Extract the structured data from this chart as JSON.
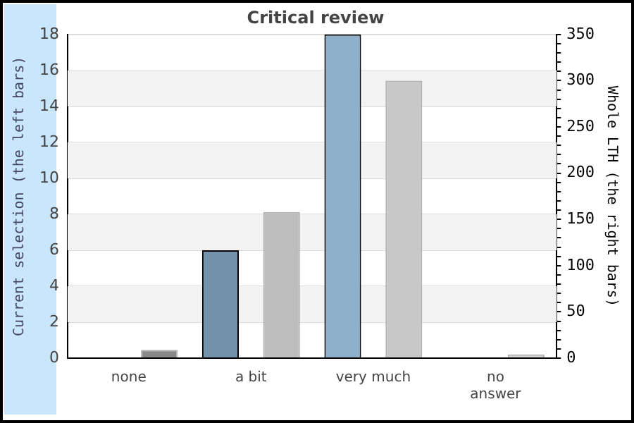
{
  "chart_data": {
    "type": "bar",
    "title": "Critical review",
    "ylabel": "Current selection (the left bars)",
    "y2label": "Whole LTH (the right bars)",
    "categories": [
      "none",
      "a bit",
      "very much",
      "no\nanswer"
    ],
    "series": [
      {
        "colors": [
          "#7393ad",
          "#7393ad",
          "#8fb0cb",
          "#8fb0cb"
        ],
        "values": [
          0,
          6,
          18,
          0
        ]
      },
      {
        "axis": "y2",
        "colors": [
          "#888888",
          "#bdbdbd",
          "#c8c8c8",
          "#d4d4d4"
        ],
        "values": [
          9,
          158,
          300,
          4
        ]
      }
    ],
    "ylim": [
      0,
      18
    ],
    "yticks": [
      0,
      2,
      4,
      6,
      8,
      10,
      12,
      14,
      16,
      18
    ],
    "y2lim": [
      0,
      350
    ],
    "y2ticks": [
      0,
      {
        "value": 10,
        "label": null
      },
      {
        "value": 20,
        "label": null
      },
      {
        "value": 30,
        "label": null
      },
      {
        "value": 40,
        "label": null
      },
      50,
      {
        "value": 60,
        "label": null
      },
      {
        "value": 70,
        "label": null
      },
      {
        "value": 80,
        "label": null
      },
      {
        "value": 90,
        "label": null
      },
      100,
      {
        "value": 110,
        "label": null
      },
      {
        "value": 120,
        "label": null
      },
      {
        "value": 130,
        "label": null
      },
      {
        "value": 140,
        "label": null
      },
      150,
      {
        "value": 160,
        "label": null
      },
      {
        "value": 170,
        "label": null
      },
      {
        "value": 180,
        "label": null
      },
      {
        "value": 190,
        "label": null
      },
      200,
      {
        "value": 210,
        "label": null
      },
      {
        "value": 220,
        "label": null
      },
      {
        "value": 230,
        "label": null
      },
      {
        "value": 240,
        "label": null
      },
      250,
      {
        "value": 260,
        "label": null
      },
      {
        "value": 270,
        "label": null
      },
      {
        "value": 280,
        "label": null
      },
      {
        "value": 290,
        "label": null
      },
      300,
      {
        "value": 310,
        "label": null
      },
      {
        "value": 320,
        "label": null
      },
      {
        "value": 330,
        "label": null
      },
      {
        "value": 340,
        "label": null
      },
      350
    ],
    "grid": "y"
  }
}
